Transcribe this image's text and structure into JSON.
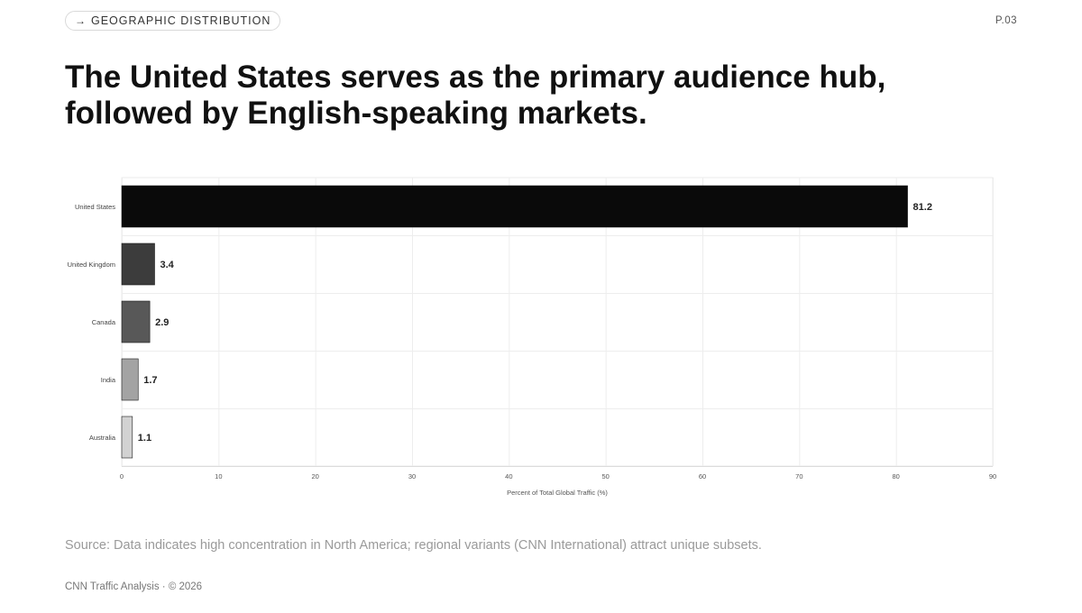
{
  "header": {
    "section_label": "GEOGRAPHIC DISTRIBUTION",
    "arrow_icon": "→",
    "page_number": "P.03"
  },
  "headline": "The United States serves as the primary audience hub, followed by English-speaking markets.",
  "chart_data": {
    "type": "bar",
    "orientation": "horizontal",
    "categories": [
      "United States",
      "United Kingdom",
      "Canada",
      "India",
      "Australia"
    ],
    "values": [
      81.2,
      3.4,
      2.9,
      1.7,
      1.1
    ],
    "value_labels": [
      "81.2",
      "3.4",
      "2.9",
      "1.7",
      "1.1"
    ],
    "bar_colors": [
      "#0a0a0a",
      "#3c3c3c",
      "#585858",
      "#a3a3a3",
      "#d2d2d2"
    ],
    "xlabel": "Percent of Total Global Traffic (%)",
    "xlim": [
      0,
      90
    ],
    "xticks": [
      0,
      10,
      20,
      30,
      40,
      50,
      60,
      70,
      80,
      90
    ],
    "grid": true,
    "legend": "none"
  },
  "source_note": "Source: Data indicates high concentration in North America; regional variants (CNN International) attract unique subsets.",
  "footer": "CNN Traffic Analysis · © 2026"
}
